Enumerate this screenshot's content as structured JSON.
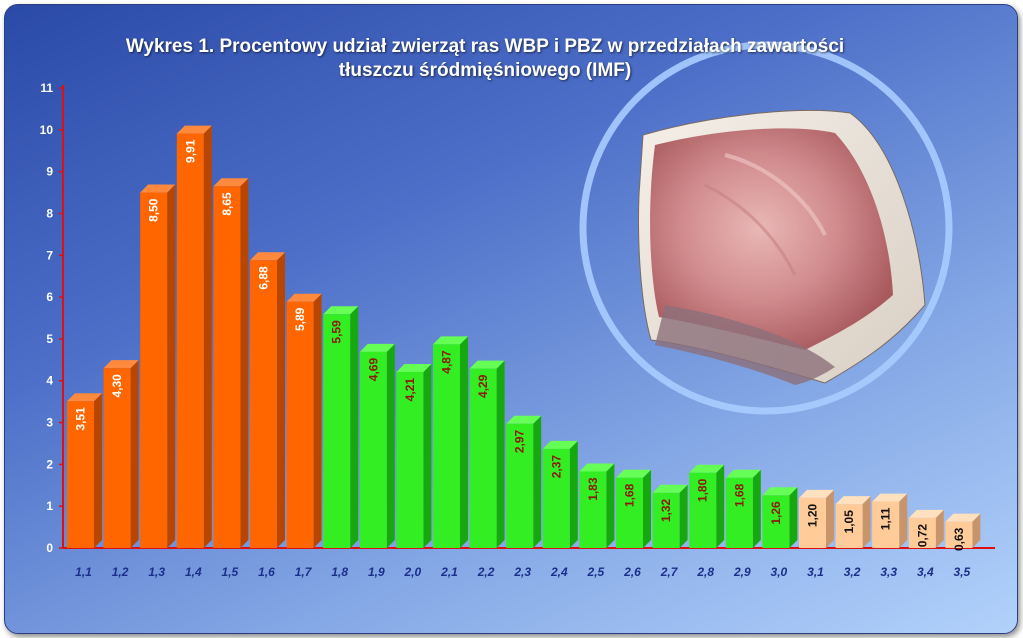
{
  "chart_data": {
    "type": "bar",
    "title": "Wykres 1. Procentowy udział  zwierząt  ras WBP i PBZ w przedziałach zawartości\ntłuszczu śródmięśniowego (IMF)",
    "categories": [
      "1,1",
      "1,2",
      "1,3",
      "1,4",
      "1,5",
      "1,6",
      "1,7",
      "1,8",
      "1,9",
      "2,0",
      "2,1",
      "2,2",
      "2,3",
      "2,4",
      "2,5",
      "2,6",
      "2,7",
      "2,8",
      "2,9",
      "3,0",
      "3,1",
      "3,2",
      "3,3",
      "3,4",
      "3,5"
    ],
    "values": [
      3.51,
      4.3,
      8.5,
      9.91,
      8.65,
      6.88,
      5.89,
      5.59,
      4.69,
      4.21,
      4.87,
      4.29,
      2.97,
      2.37,
      1.83,
      1.68,
      1.32,
      1.8,
      1.68,
      1.26,
      1.2,
      1.05,
      1.11,
      0.72,
      0.63
    ],
    "value_labels": [
      "3,51",
      "4,30",
      "8,50",
      "9,91",
      "8,65",
      "6,88",
      "5,89",
      "5,59",
      "4,69",
      "4,21",
      "4,87",
      "4,29",
      "2,97",
      "2,37",
      "1,83",
      "1,68",
      "1,32",
      "1,80",
      "1,68",
      "1,26",
      "1,20",
      "1,05",
      "1,11",
      "0,72",
      "0,63"
    ],
    "bar_groups": [
      {
        "from": 0,
        "to": 6,
        "front": "#ff6600",
        "top": "#ff8a3d",
        "side": "#b84600",
        "label_color": "#ffffff"
      },
      {
        "from": 7,
        "to": 19,
        "front": "#33ee22",
        "top": "#66ff55",
        "side": "#17a80f",
        "label_color": "#8b1a00"
      },
      {
        "from": 20,
        "to": 24,
        "front": "#ffcc99",
        "top": "#ffe0bf",
        "side": "#c8956a",
        "label_color": "#111111"
      }
    ],
    "y_ticks": [
      "0",
      "1",
      "2",
      "3",
      "4",
      "5",
      "6",
      "7",
      "8",
      "9",
      "10",
      "11"
    ],
    "ylim": [
      0,
      11
    ],
    "axis_color": "#dd1111",
    "grid": false,
    "legend": "none"
  },
  "photo": {
    "subject": "pork-chop-photo",
    "ring_color": "#a9ccff"
  }
}
